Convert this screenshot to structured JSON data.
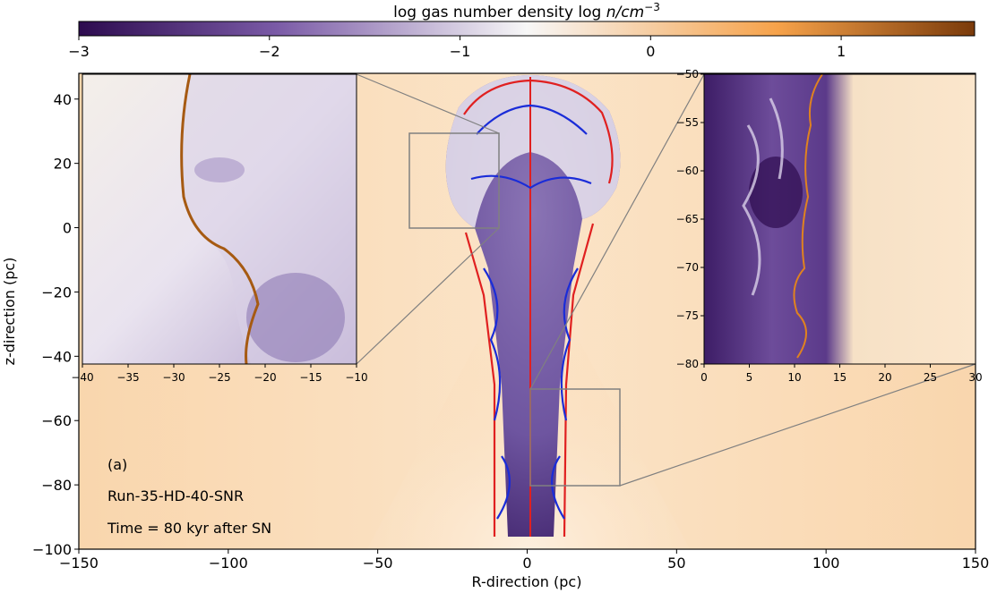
{
  "colorbar": {
    "label": "log gas number density log n/cm⁻³",
    "label_prefix": "log gas number density log ",
    "label_unit": "n/cm",
    "label_exp": "−3",
    "range": [
      -3,
      1.7
    ],
    "ticks": [
      -3,
      -2,
      -1,
      0,
      1
    ],
    "tick_labels": [
      "−3",
      "−2",
      "−1",
      "0",
      "1"
    ],
    "colormap": [
      "#2d0b4f",
      "#7a5aa6",
      "#f7f7f7",
      "#f6a24a",
      "#7a3a0a"
    ]
  },
  "chart_data": [
    {
      "type": "heatmap",
      "title": "",
      "xlabel": "R-direction (pc)",
      "ylabel": "z-direction (pc)",
      "xlim": [
        -150,
        150
      ],
      "ylim": [
        -100,
        48
      ],
      "xticks": [
        -150,
        -100,
        -50,
        0,
        50,
        100,
        150
      ],
      "xtick_labels": [
        "−150",
        "−100",
        "−50",
        "0",
        "50",
        "100",
        "150"
      ],
      "yticks": [
        -100,
        -80,
        -60,
        -40,
        -20,
        0,
        20,
        40
      ],
      "ytick_labels": [
        "−100",
        "−80",
        "−60",
        "−40",
        "−20",
        "0",
        "20",
        "40"
      ],
      "contours": [
        "red",
        "blue"
      ],
      "annotations": [
        "(a)",
        "Run-35-HD-40-SNR",
        "Time = 80 kyr after SN"
      ],
      "zoom_regions": [
        {
          "x": [
            -40,
            -10
          ],
          "y": [
            0,
            32
          ]
        },
        {
          "x": [
            0,
            30
          ],
          "y": [
            -80,
            -50
          ]
        }
      ]
    },
    {
      "type": "heatmap",
      "name": "inset-left",
      "xlim": [
        -40,
        -10
      ],
      "ylim": [
        -42,
        48
      ],
      "xticks": [
        -40,
        -35,
        -30,
        -25,
        -20,
        -15,
        -10
      ],
      "xtick_labels": [
        "−40",
        "−35",
        "−30",
        "−25",
        "−20",
        "−15",
        "−10"
      ]
    },
    {
      "type": "heatmap",
      "name": "inset-right",
      "xlim": [
        0,
        30
      ],
      "ylim": [
        -80,
        -50
      ],
      "xticks": [
        0,
        5,
        10,
        15,
        20,
        25,
        30
      ],
      "xtick_labels": [
        "0",
        "5",
        "10",
        "15",
        "20",
        "25",
        "30"
      ],
      "yticks": [
        -50,
        -55,
        -60,
        -65,
        -70,
        -75,
        -80
      ],
      "ytick_labels": [
        "−50",
        "−55",
        "−60",
        "−65",
        "−70",
        "−75",
        "−80"
      ]
    }
  ]
}
